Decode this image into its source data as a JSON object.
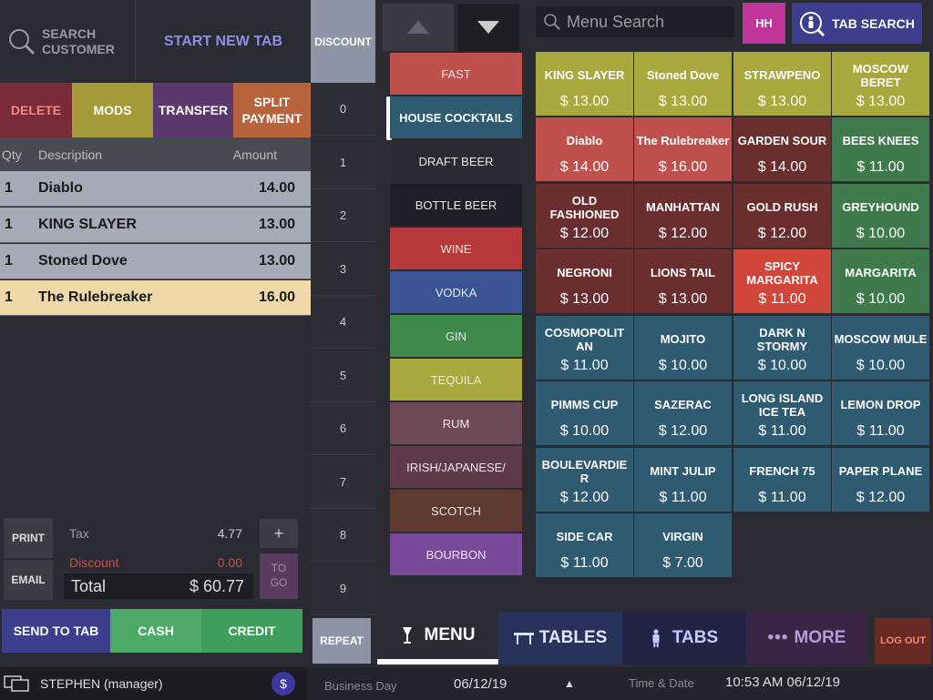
{
  "header": {
    "search_customer": "SEARCH CUSTOMER",
    "start_new_tab": "START NEW TAB",
    "discount": "DISCOUNT",
    "menu_search_placeholder": "Menu Search",
    "hh": "HH",
    "tab_search": "TAB SEARCH"
  },
  "actions": {
    "delete": "DELETE",
    "mods": "MODS",
    "transfer": "TRANSFER",
    "split_payment": "SPLIT PAYMENT"
  },
  "ticket": {
    "columns": [
      "Qty",
      "Description",
      "Amount"
    ],
    "rows": [
      {
        "qty": "1",
        "desc": "Diablo",
        "amount": "14.00"
      },
      {
        "qty": "1",
        "desc": "KING SLAYER",
        "amount": "13.00"
      },
      {
        "qty": "1",
        "desc": "Stoned Dove",
        "amount": "13.00"
      },
      {
        "qty": "1",
        "desc": "The Rulebreaker",
        "amount": "16.00"
      }
    ]
  },
  "totals": {
    "print": "PRINT",
    "email": "EMAIL",
    "tax_label": "Tax",
    "tax_value": "4.77",
    "discount_label": "Discount",
    "discount_value": "0.00",
    "total_label": "Total",
    "total_value": "$ 60.77",
    "plus": "+",
    "to_go": "TO GO"
  },
  "payment": {
    "send_to_tab": "SEND TO TAB",
    "cash": "CASH",
    "credit": "CREDIT"
  },
  "numpad": [
    "0",
    "1",
    "2",
    "3",
    "4",
    "5",
    "6",
    "7",
    "8",
    "9"
  ],
  "repeat": "REPEAT",
  "categories": [
    "FAST",
    "HOUSE COCKTAILS",
    "DRAFT BEER",
    "BOTTLE BEER",
    "WINE",
    "VODKA",
    "GIN",
    "TEQUILA",
    "RUM",
    "IRISH/JAPANESE/",
    "SCOTCH",
    "BOURBON"
  ],
  "menu_items": [
    {
      "name": "KING SLAYER",
      "price": "$ 13.00"
    },
    {
      "name": "Stoned Dove",
      "price": "$ 13.00"
    },
    {
      "name": "STRAWPENO",
      "price": "$ 13.00"
    },
    {
      "name": "MOSCOW BERET",
      "price": "$ 13.00"
    },
    {
      "name": "Diablo",
      "price": "$ 14.00"
    },
    {
      "name": "The Rulebreaker",
      "price": "$ 16.00"
    },
    {
      "name": "GARDEN SOUR",
      "price": "$ 14.00"
    },
    {
      "name": "BEES KNEES",
      "price": "$ 11.00"
    },
    {
      "name": "OLD FASHIONED",
      "price": "$ 12.00"
    },
    {
      "name": "MANHATTAN",
      "price": "$ 12.00"
    },
    {
      "name": "GOLD RUSH",
      "price": "$ 12.00"
    },
    {
      "name": "GREYHOUND",
      "price": "$ 10.00"
    },
    {
      "name": "NEGRONI",
      "price": "$ 13.00"
    },
    {
      "name": "LIONS TAIL",
      "price": "$ 13.00"
    },
    {
      "name": "SPICY MARGARITA",
      "price": "$ 11.00"
    },
    {
      "name": "MARGARITA",
      "price": "$ 10.00"
    },
    {
      "name": "COSMOPOLIT AN",
      "price": "$ 11.00"
    },
    {
      "name": "MOJITO",
      "price": "$ 10.00"
    },
    {
      "name": "DARK N STORMY",
      "price": "$ 10.00"
    },
    {
      "name": "MOSCOW MULE",
      "price": "$ 10.00"
    },
    {
      "name": "PIMMS CUP",
      "price": "$ 10.00"
    },
    {
      "name": "SAZERAC",
      "price": "$ 12.00"
    },
    {
      "name": "LONG ISLAND ICE TEA",
      "price": "$ 11.00"
    },
    {
      "name": "LEMON DROP",
      "price": "$ 11.00"
    },
    {
      "name": "BOULEVARDIE R",
      "price": "$ 12.00"
    },
    {
      "name": "MINT JULIP",
      "price": "$ 11.00"
    },
    {
      "name": "FRENCH 75",
      "price": "$ 11.00"
    },
    {
      "name": "PAPER PLANE",
      "price": "$ 12.00"
    },
    {
      "name": "SIDE CAR",
      "price": "$ 11.00"
    },
    {
      "name": "VIRGIN",
      "price": "$ 7.00"
    }
  ],
  "bottom_nav": {
    "menu": "MENU",
    "tables": "TABLES",
    "tabs": "TABS",
    "more": "MORE",
    "logout": "LOG OUT"
  },
  "status": {
    "user": "STEPHEN (manager)",
    "business_day_label": "Business Day",
    "business_day": "06/12/19",
    "time_date_label": "Time & Date",
    "time_date": "10:53 AM 06/12/19"
  },
  "colors": {
    "olive": "#a8a83c",
    "red": "#c0504c",
    "maroon": "#6b2e2e",
    "green": "#3f7a4c",
    "teal": "#2e5a72",
    "bright_red": "#d2453a",
    "purple": "#5a3a78",
    "pink": "#c0369a"
  }
}
